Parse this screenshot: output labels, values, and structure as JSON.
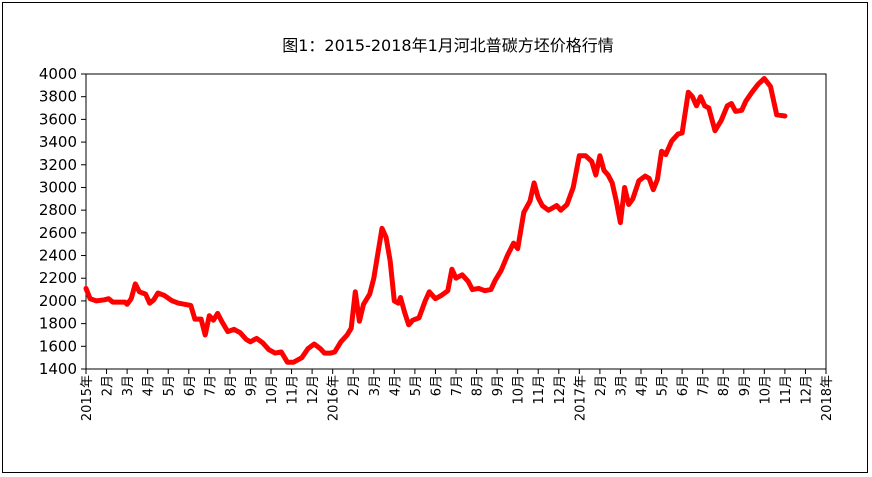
{
  "chart_data": {
    "type": "line",
    "title": "图1：2015-2018年1月河北普碳方坯价格行情",
    "xlabel": "",
    "ylabel": "",
    "ylim": [
      1400,
      4000
    ],
    "yticks": [
      1400,
      1600,
      1800,
      2000,
      2200,
      2400,
      2600,
      2800,
      3000,
      3200,
      3400,
      3600,
      3800,
      4000
    ],
    "xlim": [
      0,
      36
    ],
    "xtick_labels": [
      "2015年",
      "2月",
      "3月",
      "4月",
      "5月",
      "6月",
      "7月",
      "8月",
      "9月",
      "10月",
      "11月",
      "12月",
      "2016年",
      "2月",
      "3月",
      "4月",
      "5月",
      "6月",
      "7月",
      "8月",
      "9月",
      "10月",
      "11月",
      "12月",
      "2017年",
      "2月",
      "3月",
      "4月",
      "5月",
      "6月",
      "7月",
      "8月",
      "9月",
      "10月",
      "11月",
      "12月",
      "2018年"
    ],
    "grid": false,
    "legend": "none",
    "color": "#ff0000",
    "series": [
      {
        "points": [
          [
            0,
            2110
          ],
          [
            0.2,
            2020
          ],
          [
            0.5,
            2000
          ],
          [
            0.9,
            2010
          ],
          [
            1.1,
            2020
          ],
          [
            1.3,
            1990
          ],
          [
            1.6,
            1990
          ],
          [
            1.9,
            1990
          ],
          [
            2.0,
            1970
          ],
          [
            2.2,
            2020
          ],
          [
            2.4,
            2150
          ],
          [
            2.6,
            2080
          ],
          [
            2.9,
            2060
          ],
          [
            3.1,
            1980
          ],
          [
            3.3,
            2010
          ],
          [
            3.5,
            2070
          ],
          [
            3.8,
            2050
          ],
          [
            4.2,
            2000
          ],
          [
            4.5,
            1980
          ],
          [
            4.8,
            1970
          ],
          [
            5.1,
            1960
          ],
          [
            5.3,
            1840
          ],
          [
            5.6,
            1840
          ],
          [
            5.8,
            1700
          ],
          [
            6.0,
            1870
          ],
          [
            6.2,
            1830
          ],
          [
            6.4,
            1890
          ],
          [
            6.6,
            1820
          ],
          [
            6.9,
            1730
          ],
          [
            7.2,
            1750
          ],
          [
            7.5,
            1720
          ],
          [
            7.8,
            1660
          ],
          [
            8.0,
            1640
          ],
          [
            8.3,
            1670
          ],
          [
            8.6,
            1630
          ],
          [
            8.9,
            1570
          ],
          [
            9.2,
            1540
          ],
          [
            9.5,
            1550
          ],
          [
            9.8,
            1460
          ],
          [
            10.1,
            1460
          ],
          [
            10.5,
            1500
          ],
          [
            10.8,
            1580
          ],
          [
            11.1,
            1620
          ],
          [
            11.4,
            1580
          ],
          [
            11.6,
            1540
          ],
          [
            11.9,
            1540
          ],
          [
            12.1,
            1550
          ],
          [
            12.4,
            1640
          ],
          [
            12.7,
            1700
          ],
          [
            12.9,
            1760
          ],
          [
            13.1,
            2080
          ],
          [
            13.3,
            1820
          ],
          [
            13.5,
            1970
          ],
          [
            13.8,
            2060
          ],
          [
            14.0,
            2200
          ],
          [
            14.2,
            2420
          ],
          [
            14.4,
            2640
          ],
          [
            14.6,
            2560
          ],
          [
            14.8,
            2350
          ],
          [
            15.0,
            2000
          ],
          [
            15.2,
            1980
          ],
          [
            15.3,
            2030
          ],
          [
            15.5,
            1900
          ],
          [
            15.7,
            1790
          ],
          [
            15.9,
            1830
          ],
          [
            16.2,
            1850
          ],
          [
            16.5,
            2000
          ],
          [
            16.7,
            2080
          ],
          [
            17.0,
            2020
          ],
          [
            17.3,
            2050
          ],
          [
            17.6,
            2090
          ],
          [
            17.8,
            2280
          ],
          [
            18.0,
            2200
          ],
          [
            18.3,
            2230
          ],
          [
            18.6,
            2170
          ],
          [
            18.8,
            2100
          ],
          [
            19.1,
            2110
          ],
          [
            19.4,
            2090
          ],
          [
            19.7,
            2100
          ],
          [
            19.9,
            2180
          ],
          [
            20.2,
            2270
          ],
          [
            20.5,
            2400
          ],
          [
            20.8,
            2510
          ],
          [
            21.0,
            2460
          ],
          [
            21.3,
            2780
          ],
          [
            21.6,
            2880
          ],
          [
            21.8,
            3040
          ],
          [
            22.0,
            2910
          ],
          [
            22.2,
            2840
          ],
          [
            22.5,
            2800
          ],
          [
            22.7,
            2820
          ],
          [
            22.9,
            2840
          ],
          [
            23.1,
            2800
          ],
          [
            23.4,
            2850
          ],
          [
            23.7,
            3000
          ],
          [
            24.0,
            3280
          ],
          [
            24.3,
            3280
          ],
          [
            24.6,
            3230
          ],
          [
            24.8,
            3110
          ],
          [
            25.0,
            3280
          ],
          [
            25.2,
            3150
          ],
          [
            25.4,
            3110
          ],
          [
            25.6,
            3040
          ],
          [
            25.8,
            2880
          ],
          [
            26.0,
            2690
          ],
          [
            26.2,
            3000
          ],
          [
            26.4,
            2850
          ],
          [
            26.6,
            2900
          ],
          [
            26.9,
            3060
          ],
          [
            27.2,
            3100
          ],
          [
            27.4,
            3080
          ],
          [
            27.6,
            2980
          ],
          [
            27.8,
            3070
          ],
          [
            28.0,
            3320
          ],
          [
            28.2,
            3290
          ],
          [
            28.5,
            3410
          ],
          [
            28.8,
            3470
          ],
          [
            29.0,
            3480
          ],
          [
            29.3,
            3840
          ],
          [
            29.5,
            3800
          ],
          [
            29.7,
            3720
          ],
          [
            29.9,
            3800
          ],
          [
            30.1,
            3720
          ],
          [
            30.3,
            3700
          ],
          [
            30.6,
            3500
          ],
          [
            30.9,
            3590
          ],
          [
            31.2,
            3720
          ],
          [
            31.4,
            3740
          ],
          [
            31.6,
            3670
          ],
          [
            31.9,
            3680
          ],
          [
            32.1,
            3760
          ],
          [
            32.4,
            3840
          ],
          [
            32.7,
            3910
          ],
          [
            33.0,
            3960
          ],
          [
            33.3,
            3890
          ],
          [
            33.6,
            3640
          ],
          [
            34.0,
            3630
          ]
        ]
      }
    ]
  }
}
